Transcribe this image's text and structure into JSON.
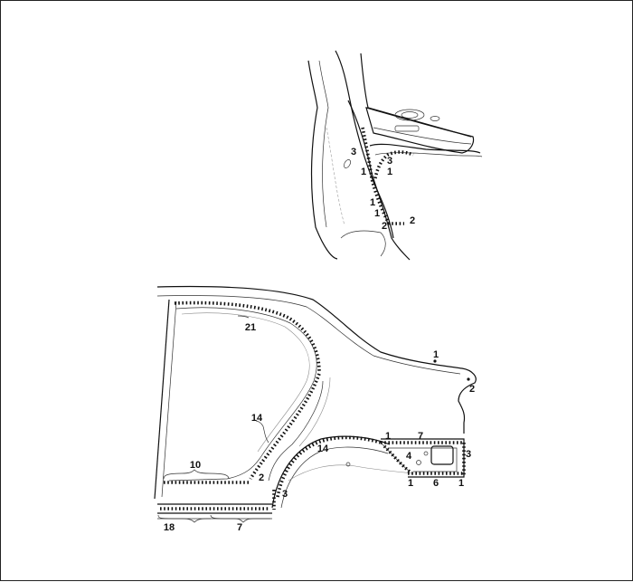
{
  "upper_callouts": {
    "c1": "3",
    "c2": "1",
    "c3": "3",
    "c4": "1",
    "c5": "1",
    "c6": "1",
    "c7": "2",
    "c8": "2"
  },
  "lower_callouts": {
    "c1": "21",
    "c2": "1",
    "c3": "2",
    "c4": "14",
    "c5": "14",
    "c6": "1",
    "c7": "7",
    "c8": "4",
    "c9": "3",
    "c10": "10",
    "c11": "2",
    "c12": "3",
    "c13": "1",
    "c14": "6",
    "c15": "1",
    "c16": "18",
    "c17": "7"
  }
}
